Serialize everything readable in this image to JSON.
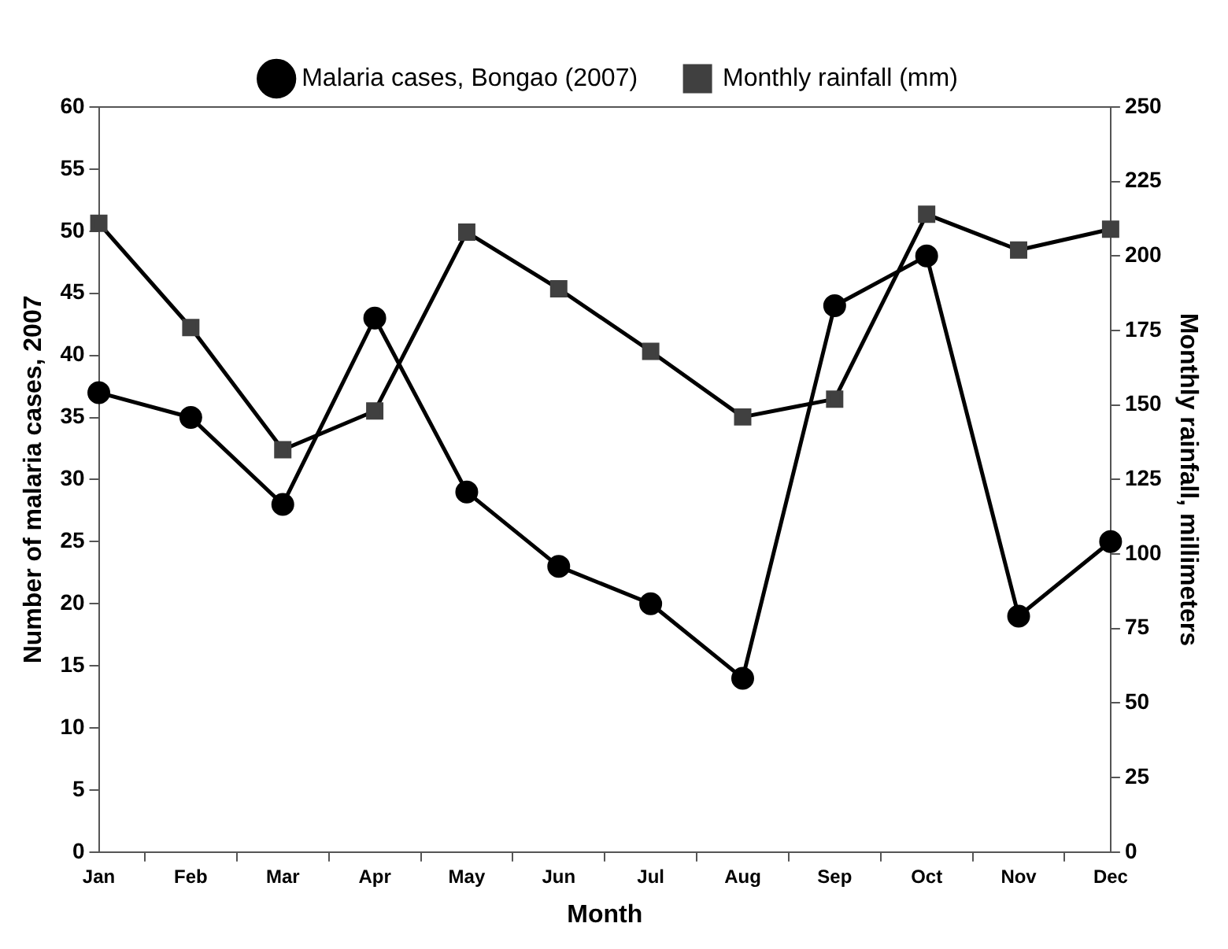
{
  "chart_data": {
    "type": "line",
    "xlabel": "Month",
    "ylabel": "Number of malaria cases, 2007",
    "y2label": "Monthly rainfall, millimeters",
    "categories": [
      "Jan",
      "Feb",
      "Mar",
      "Apr",
      "May",
      "Jun",
      "Jul",
      "Aug",
      "Sep",
      "Oct",
      "Nov",
      "Dec"
    ],
    "series": [
      {
        "name": "Malaria cases, Bongao (2007)",
        "color": "#000000",
        "marker": "circle",
        "values": [
          37,
          35,
          28,
          43,
          29,
          23,
          20,
          14,
          44,
          48,
          19,
          25
        ]
      },
      {
        "name": "Monthly rainfall (mm)",
        "color": "#404040",
        "marker": "square",
        "axis": "y2",
        "values": [
          211,
          176,
          135,
          148,
          208,
          189,
          168,
          146,
          152,
          214,
          202,
          209
        ]
      }
    ],
    "ylim": [
      0,
      60
    ],
    "yticks": [
      0,
      5,
      10,
      15,
      20,
      25,
      30,
      35,
      40,
      45,
      50,
      55,
      60
    ],
    "y2lim": [
      0,
      250
    ],
    "y2ticks": [
      0,
      25,
      50,
      75,
      100,
      125,
      150,
      175,
      200,
      225,
      250
    ],
    "grid": false,
    "legend": "top",
    "line_style": "solid"
  }
}
